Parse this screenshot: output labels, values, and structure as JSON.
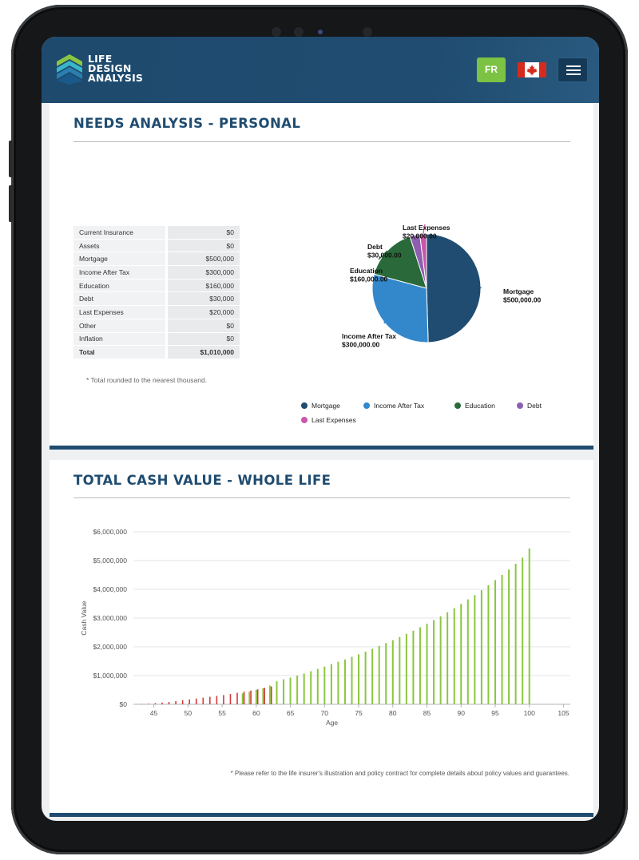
{
  "brand": {
    "logo_lines": [
      "LIFE",
      "DESIGN",
      "ANALYSIS"
    ],
    "language_button": "FR",
    "primary_color": "#1f4c70",
    "accent_color": "#7cc243"
  },
  "header": {
    "flag_icon": "canada-flag-icon",
    "menu_icon": "hamburger-menu-icon"
  },
  "needs": {
    "title": "NEEDS ANALYSIS - PERSONAL",
    "rows": [
      {
        "label": "Current Insurance",
        "value": "$0"
      },
      {
        "label": "Assets",
        "value": "$0"
      },
      {
        "label": "Mortgage",
        "value": "$500,000"
      },
      {
        "label": "Income After Tax",
        "value": "$300,000"
      },
      {
        "label": "Education",
        "value": "$160,000"
      },
      {
        "label": "Debt",
        "value": "$30,000"
      },
      {
        "label": "Last Expenses",
        "value": "$20,000"
      },
      {
        "label": "Other",
        "value": "$0"
      },
      {
        "label": "Inflation",
        "value": "$0"
      },
      {
        "label": "Total",
        "value": "$1,010,000"
      }
    ],
    "footnote": "* Total rounded to the nearest thousand."
  },
  "cash_value": {
    "title": "TOTAL CASH VALUE - WHOLE LIFE",
    "footnote": "* Please refer to the life insurer's illustration and policy contract for complete details about policy values and guarantees."
  },
  "chart_data": [
    {
      "type": "pie",
      "labels": [
        "Mortgage",
        "Income After Tax",
        "Education",
        "Debt",
        "Last Expenses"
      ],
      "values": [
        500000,
        300000,
        160000,
        30000,
        20000
      ],
      "slice_labels": [
        [
          "Mortgage",
          "$500,000.00"
        ],
        [
          "Income After Tax",
          "$300,000.00"
        ],
        [
          "Education",
          "$160,000.00"
        ],
        [
          "Debt",
          "$30,000.00"
        ],
        [
          "Last Expenses",
          "$20,000.00"
        ]
      ],
      "colors": [
        "#1f4c70",
        "#3388cc",
        "#2a6a3a",
        "#8e5fb0",
        "#cc55aa"
      ],
      "legend_position": "bottom"
    },
    {
      "type": "bar",
      "xlabel": "Age",
      "ylabel": "Cash Value",
      "xlim": [
        42,
        106
      ],
      "ylim": [
        0,
        6000000
      ],
      "x_ticks": [
        45,
        50,
        55,
        60,
        65,
        70,
        75,
        80,
        85,
        90,
        95,
        100,
        105
      ],
      "y_ticks": [
        0,
        1000000,
        2000000,
        3000000,
        4000000,
        5000000,
        6000000
      ],
      "y_tick_labels": [
        "$0",
        "$1,000,000",
        "$2,000,000",
        "$3,000,000",
        "$4,000,000",
        "$5,000,000",
        "$6,000,000"
      ],
      "grid": true,
      "series": [
        {
          "color": "#d43a3a",
          "x": [
            43,
            44,
            45,
            46,
            47,
            48,
            49,
            50,
            51,
            52,
            53,
            54,
            55,
            56,
            57,
            58,
            59,
            60,
            61,
            62
          ],
          "values": [
            10000,
            20000,
            40000,
            60000,
            80000,
            110000,
            140000,
            170000,
            200000,
            230000,
            260000,
            290000,
            320000,
            360000,
            400000,
            440000,
            480000,
            520000,
            570000,
            620000
          ]
        },
        {
          "color": "#8cc63f",
          "x": [
            58,
            59,
            60,
            61,
            62,
            63,
            64,
            65,
            66,
            67,
            68,
            69,
            70,
            71,
            72,
            73,
            74,
            75,
            76,
            77,
            78,
            79,
            80,
            81,
            82,
            83,
            84,
            85,
            86,
            87,
            88,
            89,
            90,
            91,
            92,
            93,
            94,
            95,
            96,
            97,
            98,
            99,
            100
          ],
          "values": [
            380000,
            440000,
            500000,
            560000,
            650000,
            800000,
            870000,
            930000,
            1000000,
            1070000,
            1150000,
            1230000,
            1310000,
            1400000,
            1480000,
            1560000,
            1650000,
            1740000,
            1830000,
            1930000,
            2030000,
            2130000,
            2230000,
            2340000,
            2450000,
            2560000,
            2680000,
            2800000,
            2930000,
            3060000,
            3200000,
            3340000,
            3490000,
            3650000,
            3800000,
            3970000,
            4140000,
            4320000,
            4500000,
            4690000,
            4890000,
            5100000,
            5420000
          ]
        }
      ]
    }
  ]
}
